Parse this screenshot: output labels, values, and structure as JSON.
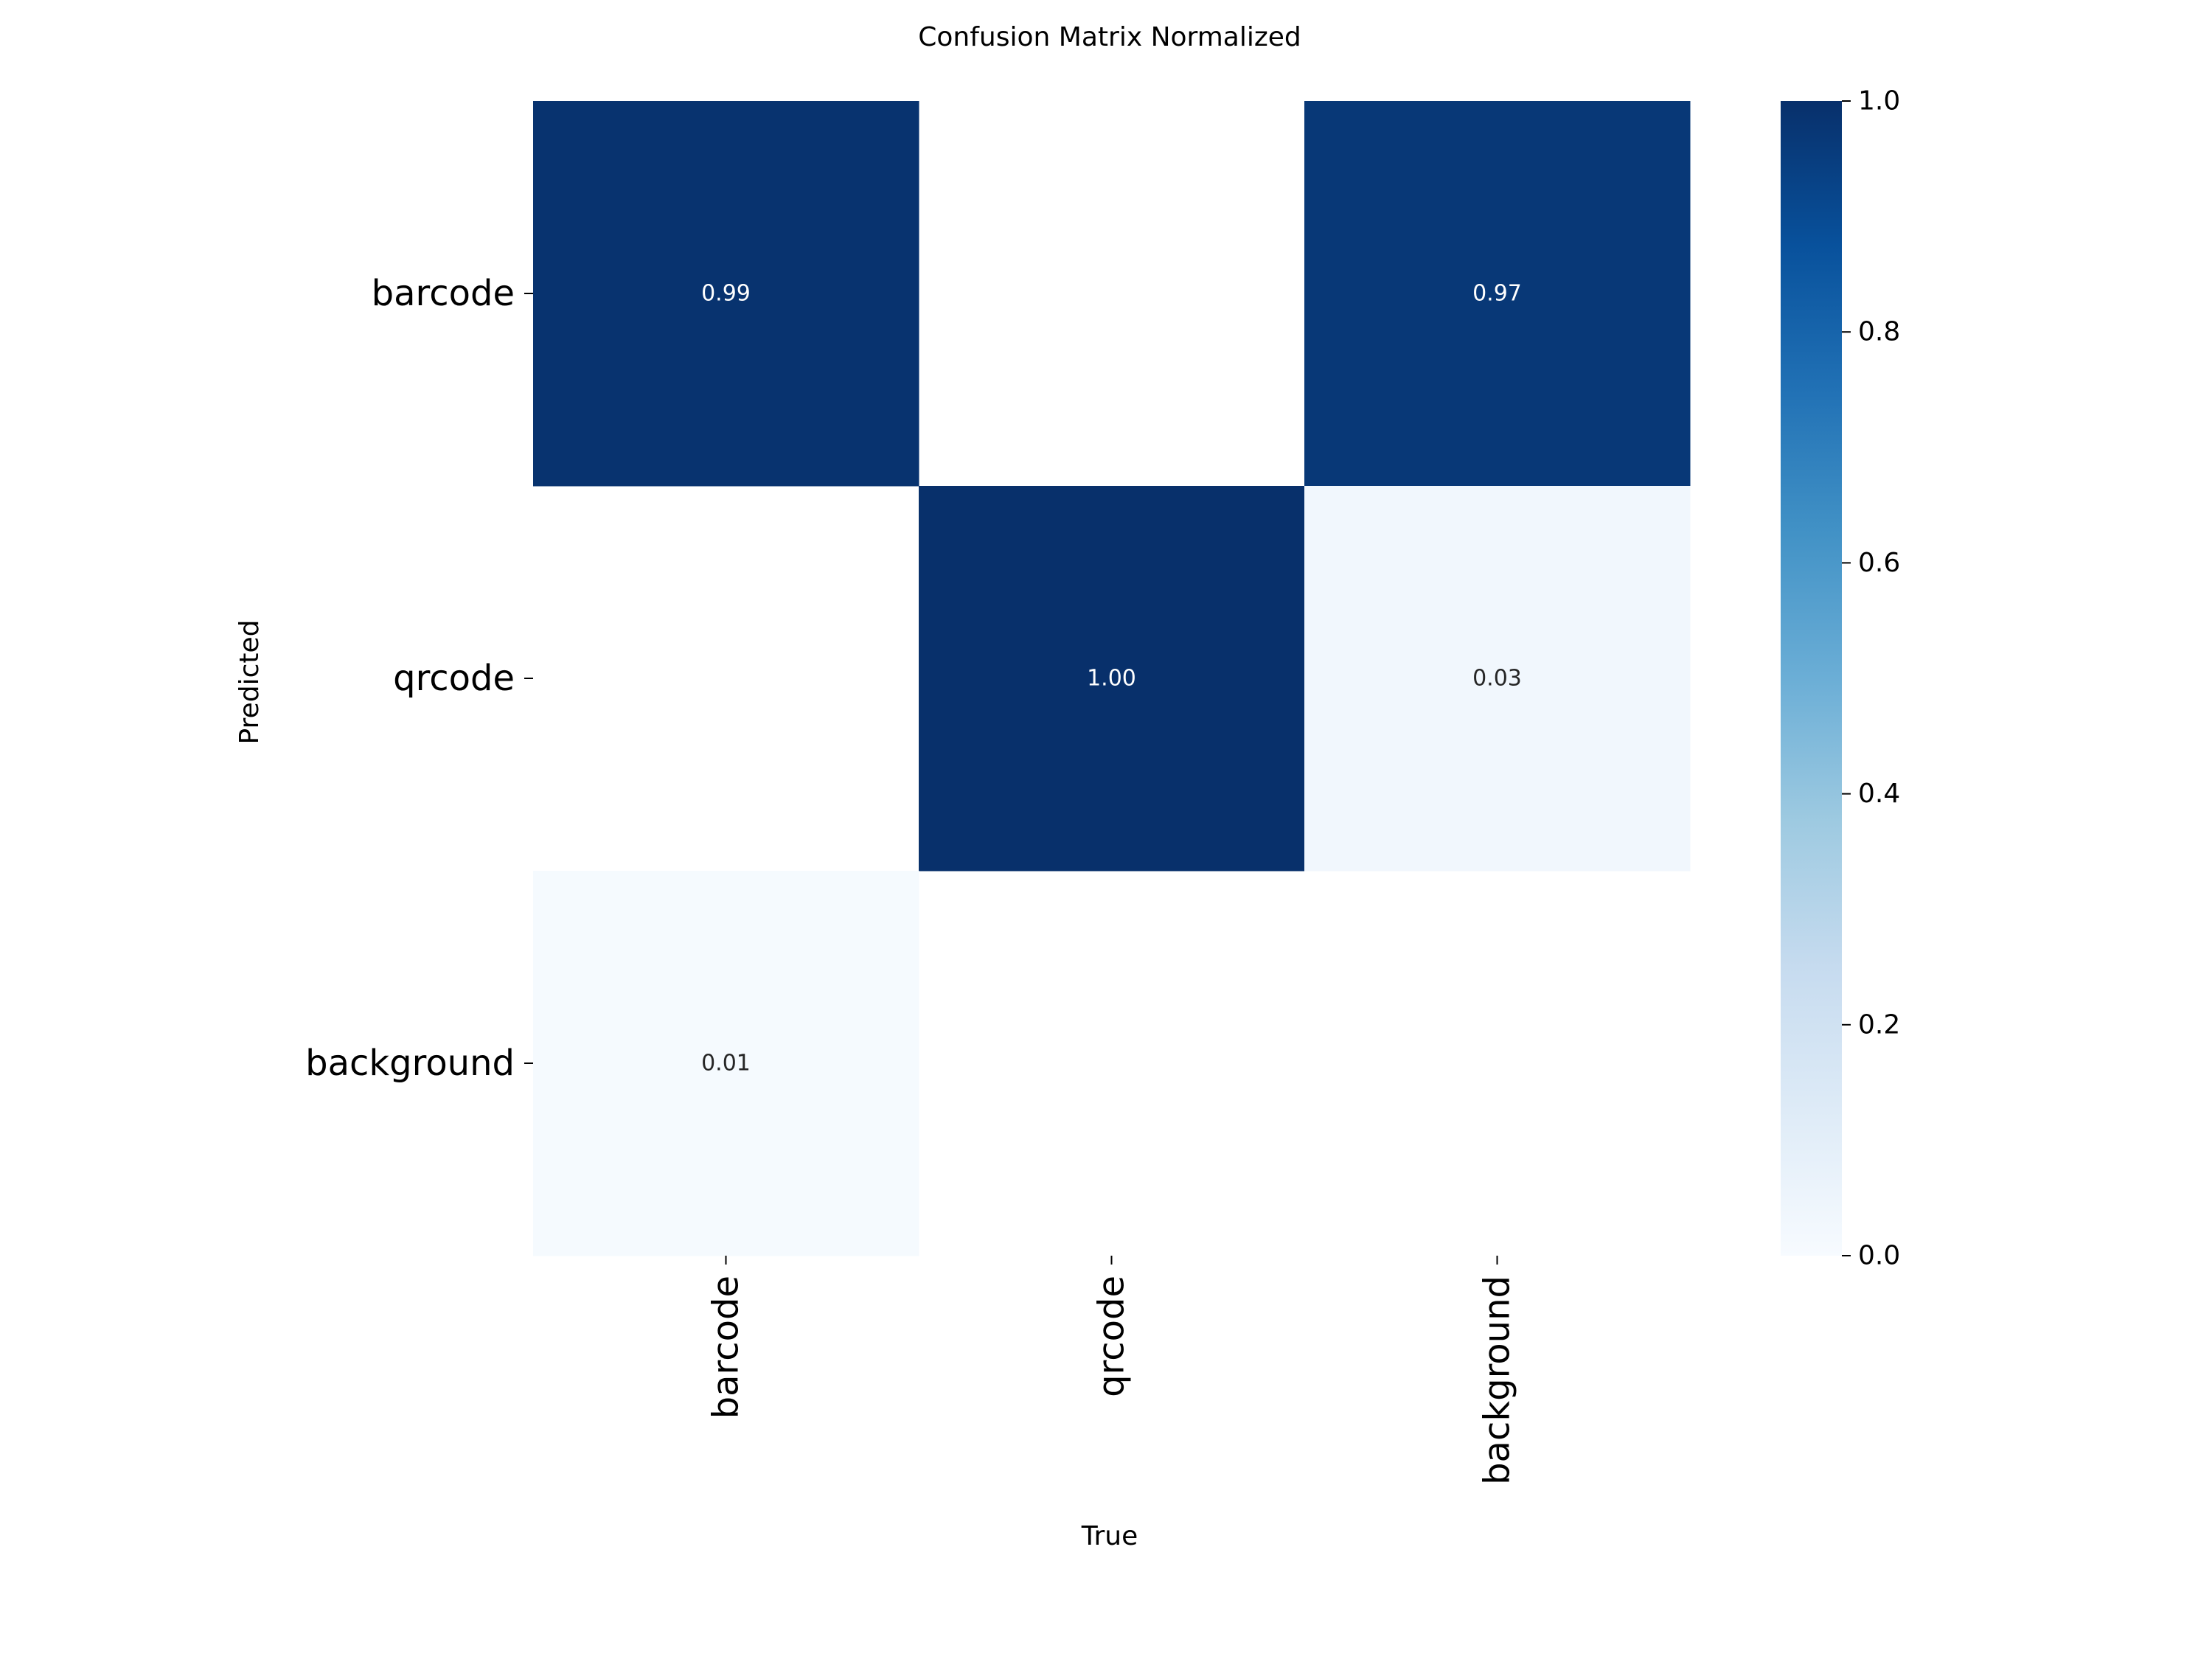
{
  "chart_data": {
    "type": "heatmap",
    "title": "Confusion Matrix Normalized",
    "xlabel": "True",
    "ylabel": "Predicted",
    "x_categories": [
      "barcode",
      "qrcode",
      "background"
    ],
    "y_categories": [
      "barcode",
      "qrcode",
      "background"
    ],
    "values": [
      [
        0.99,
        null,
        0.97
      ],
      [
        null,
        1.0,
        0.03
      ],
      [
        0.01,
        null,
        null
      ]
    ],
    "value_labels": [
      [
        "0.99",
        "",
        "0.97"
      ],
      [
        "",
        "1.00",
        "0.03"
      ],
      [
        "0.01",
        "",
        ""
      ]
    ],
    "colorbar": {
      "range": [
        0.0,
        1.0
      ],
      "tick_labels": [
        "0.0",
        "0.2",
        "0.4",
        "0.6",
        "0.8",
        "1.0"
      ],
      "tick_values": [
        0.0,
        0.2,
        0.4,
        0.6,
        0.8,
        1.0
      ],
      "colormap": "Blues"
    },
    "grid": false,
    "legend": "colorbar-right"
  }
}
